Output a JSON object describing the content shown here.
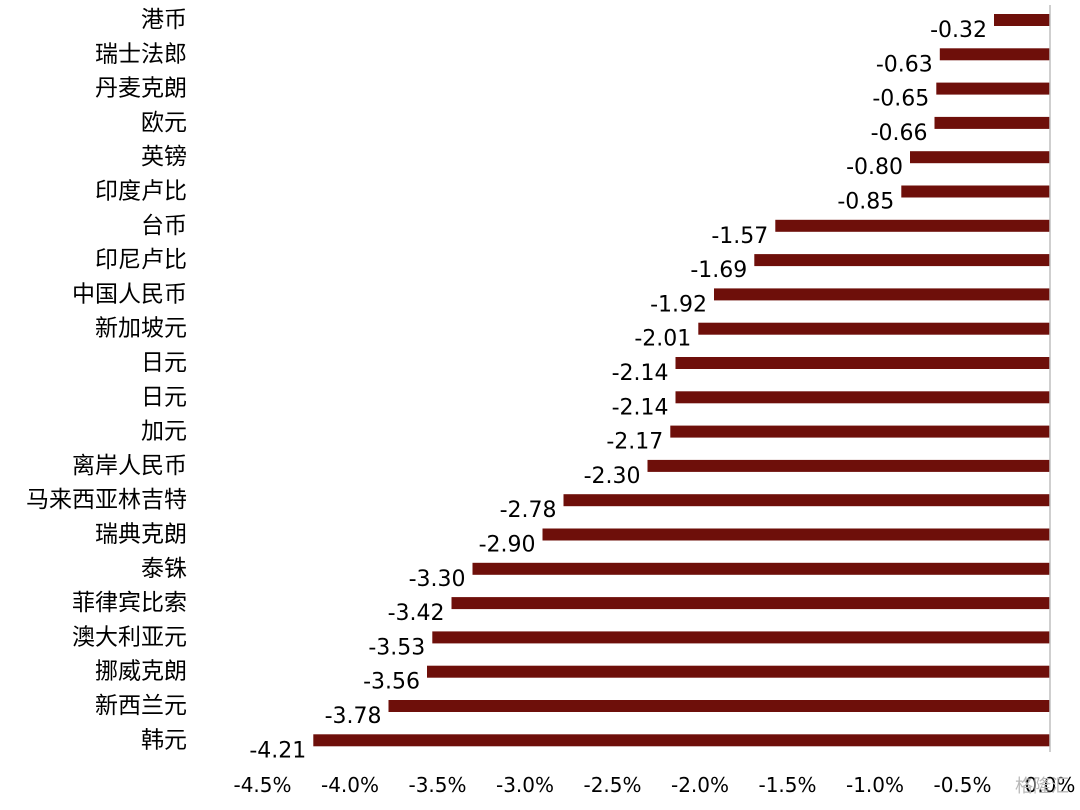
{
  "chart_data": {
    "type": "bar",
    "orientation": "horizontal",
    "categories": [
      "港币",
      "瑞士法郎",
      "丹麦克朗",
      "欧元",
      "英镑",
      "印度卢比",
      "台币",
      "印尼卢比",
      "中国人民币",
      "新加坡元",
      "日元",
      "日元",
      "加元",
      "离岸人民币",
      "马来西亚林吉特",
      "瑞典克朗",
      "泰铢",
      "菲律宾比索",
      "澳大利亚元",
      "挪威克朗",
      "新西兰元",
      "韩元"
    ],
    "values": [
      -0.32,
      -0.63,
      -0.65,
      -0.66,
      -0.8,
      -0.85,
      -1.57,
      -1.69,
      -1.92,
      -2.01,
      -2.14,
      -2.14,
      -2.17,
      -2.3,
      -2.78,
      -2.9,
      -3.3,
      -3.42,
      -3.53,
      -3.56,
      -3.78,
      -4.21
    ],
    "value_labels": [
      "-0.32",
      "-0.63",
      "-0.65",
      "-0.66",
      "-0.80",
      "-0.85",
      "-1.57",
      "-1.69",
      "-1.92",
      "-2.01",
      "-2.14",
      "-2.14",
      "-2.17",
      "-2.30",
      "-2.78",
      "-2.90",
      "-3.30",
      "-3.42",
      "-3.53",
      "-3.56",
      "-3.78",
      "-4.21"
    ],
    "xlim": [
      -4.5,
      0
    ],
    "x_ticks": [
      -4.5,
      -4.0,
      -3.5,
      -3.0,
      -2.5,
      -2.0,
      -1.5,
      -1.0,
      -0.5,
      0
    ],
    "x_tick_labels": [
      "-4.5%",
      "-4.0%",
      "-3.5%",
      "-3.0%",
      "-2.5%",
      "-2.0%",
      "-1.5%",
      "-1.0%",
      "-0.5%",
      "0.0%"
    ],
    "bar_color": "#6e0f0a",
    "grid": false,
    "legend": "none",
    "title": "",
    "xlabel": "",
    "ylabel": ""
  },
  "watermark_text": "格隆汇"
}
